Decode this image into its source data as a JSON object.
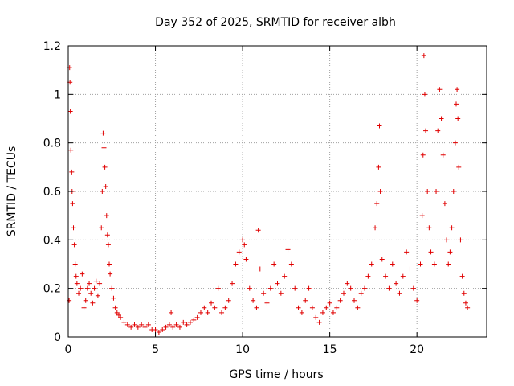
{
  "chart_data": {
    "type": "scatter",
    "title": "Day 352 of 2025, SRMTID for receiver albh",
    "xlabel": "GPS time / hours",
    "ylabel": "SRMTID / TECUs",
    "xlim": [
      0,
      24
    ],
    "ylim": [
      0,
      1.2
    ],
    "x_ticks": [
      0,
      5,
      10,
      15,
      20
    ],
    "x_tick_labels": [
      "0",
      "5",
      "10",
      "15",
      "20"
    ],
    "y_ticks": [
      0,
      0.2,
      0.4,
      0.6,
      0.8,
      1.0,
      1.2
    ],
    "y_tick_labels": [
      "0",
      "0.2",
      "0.4",
      "0.6",
      "0.8",
      "1",
      "1.2"
    ],
    "grid": true,
    "marker": "+",
    "series_color": "#e00000",
    "series": [
      {
        "name": "SRMTID",
        "points": [
          [
            0.05,
            0.15
          ],
          [
            0.08,
            1.11
          ],
          [
            0.1,
            1.05
          ],
          [
            0.12,
            0.93
          ],
          [
            0.15,
            0.77
          ],
          [
            0.2,
            0.68
          ],
          [
            0.22,
            0.6
          ],
          [
            0.25,
            0.55
          ],
          [
            0.3,
            0.45
          ],
          [
            0.35,
            0.38
          ],
          [
            0.4,
            0.3
          ],
          [
            0.45,
            0.25
          ],
          [
            0.5,
            0.22
          ],
          [
            0.6,
            0.18
          ],
          [
            0.7,
            0.2
          ],
          [
            0.8,
            0.26
          ],
          [
            0.9,
            0.12
          ],
          [
            1.0,
            0.15
          ],
          [
            1.1,
            0.2
          ],
          [
            1.2,
            0.22
          ],
          [
            1.3,
            0.18
          ],
          [
            1.4,
            0.14
          ],
          [
            1.5,
            0.2
          ],
          [
            1.6,
            0.23
          ],
          [
            1.7,
            0.17
          ],
          [
            1.8,
            0.22
          ],
          [
            1.9,
            0.45
          ],
          [
            1.95,
            0.6
          ],
          [
            2.0,
            0.84
          ],
          [
            2.05,
            0.78
          ],
          [
            2.1,
            0.7
          ],
          [
            2.15,
            0.62
          ],
          [
            2.2,
            0.5
          ],
          [
            2.25,
            0.42
          ],
          [
            2.3,
            0.38
          ],
          [
            2.35,
            0.3
          ],
          [
            2.4,
            0.26
          ],
          [
            2.5,
            0.2
          ],
          [
            2.6,
            0.16
          ],
          [
            2.7,
            0.12
          ],
          [
            2.8,
            0.1
          ],
          [
            2.9,
            0.09
          ],
          [
            3.0,
            0.08
          ],
          [
            3.2,
            0.06
          ],
          [
            3.4,
            0.05
          ],
          [
            3.6,
            0.04
          ],
          [
            3.8,
            0.05
          ],
          [
            4.0,
            0.04
          ],
          [
            4.2,
            0.05
          ],
          [
            4.4,
            0.04
          ],
          [
            4.6,
            0.05
          ],
          [
            4.8,
            0.03
          ],
          [
            5.0,
            0.03
          ],
          [
            5.2,
            0.02
          ],
          [
            5.4,
            0.03
          ],
          [
            5.6,
            0.04
          ],
          [
            5.8,
            0.05
          ],
          [
            5.9,
            0.1
          ],
          [
            6.0,
            0.04
          ],
          [
            6.2,
            0.05
          ],
          [
            6.4,
            0.04
          ],
          [
            6.6,
            0.06
          ],
          [
            6.8,
            0.05
          ],
          [
            7.0,
            0.06
          ],
          [
            7.2,
            0.07
          ],
          [
            7.4,
            0.08
          ],
          [
            7.6,
            0.1
          ],
          [
            7.8,
            0.12
          ],
          [
            8.0,
            0.1
          ],
          [
            8.2,
            0.14
          ],
          [
            8.4,
            0.12
          ],
          [
            8.6,
            0.2
          ],
          [
            8.8,
            0.1
          ],
          [
            9.0,
            0.12
          ],
          [
            9.2,
            0.15
          ],
          [
            9.4,
            0.22
          ],
          [
            9.6,
            0.3
          ],
          [
            9.8,
            0.35
          ],
          [
            10.0,
            0.4
          ],
          [
            10.1,
            0.38
          ],
          [
            10.2,
            0.32
          ],
          [
            10.4,
            0.2
          ],
          [
            10.6,
            0.15
          ],
          [
            10.8,
            0.12
          ],
          [
            10.9,
            0.44
          ],
          [
            11.0,
            0.28
          ],
          [
            11.2,
            0.18
          ],
          [
            11.4,
            0.14
          ],
          [
            11.6,
            0.2
          ],
          [
            11.8,
            0.3
          ],
          [
            12.0,
            0.22
          ],
          [
            12.2,
            0.18
          ],
          [
            12.4,
            0.25
          ],
          [
            12.6,
            0.36
          ],
          [
            12.8,
            0.3
          ],
          [
            13.0,
            0.2
          ],
          [
            13.2,
            0.12
          ],
          [
            13.4,
            0.1
          ],
          [
            13.6,
            0.15
          ],
          [
            13.8,
            0.2
          ],
          [
            14.0,
            0.12
          ],
          [
            14.2,
            0.08
          ],
          [
            14.4,
            0.06
          ],
          [
            14.6,
            0.1
          ],
          [
            14.8,
            0.12
          ],
          [
            15.0,
            0.14
          ],
          [
            15.2,
            0.1
          ],
          [
            15.4,
            0.12
          ],
          [
            15.6,
            0.15
          ],
          [
            15.8,
            0.18
          ],
          [
            16.0,
            0.22
          ],
          [
            16.2,
            0.2
          ],
          [
            16.4,
            0.15
          ],
          [
            16.6,
            0.12
          ],
          [
            16.8,
            0.18
          ],
          [
            17.0,
            0.2
          ],
          [
            17.2,
            0.25
          ],
          [
            17.4,
            0.3
          ],
          [
            17.6,
            0.45
          ],
          [
            17.7,
            0.55
          ],
          [
            17.8,
            0.7
          ],
          [
            17.85,
            0.87
          ],
          [
            17.9,
            0.6
          ],
          [
            18.0,
            0.32
          ],
          [
            18.2,
            0.25
          ],
          [
            18.4,
            0.2
          ],
          [
            18.6,
            0.3
          ],
          [
            18.8,
            0.22
          ],
          [
            19.0,
            0.18
          ],
          [
            19.2,
            0.25
          ],
          [
            19.4,
            0.35
          ],
          [
            19.6,
            0.28
          ],
          [
            19.8,
            0.2
          ],
          [
            20.0,
            0.15
          ],
          [
            20.2,
            0.3
          ],
          [
            20.3,
            0.5
          ],
          [
            20.35,
            0.75
          ],
          [
            20.4,
            1.16
          ],
          [
            20.45,
            1.0
          ],
          [
            20.5,
            0.85
          ],
          [
            20.6,
            0.6
          ],
          [
            20.7,
            0.45
          ],
          [
            20.8,
            0.35
          ],
          [
            21.0,
            0.3
          ],
          [
            21.1,
            0.6
          ],
          [
            21.2,
            0.85
          ],
          [
            21.3,
            1.02
          ],
          [
            21.4,
            0.9
          ],
          [
            21.5,
            0.75
          ],
          [
            21.6,
            0.55
          ],
          [
            21.7,
            0.4
          ],
          [
            21.8,
            0.3
          ],
          [
            21.9,
            0.35
          ],
          [
            22.0,
            0.45
          ],
          [
            22.1,
            0.6
          ],
          [
            22.2,
            0.8
          ],
          [
            22.25,
            0.96
          ],
          [
            22.3,
            1.02
          ],
          [
            22.35,
            0.9
          ],
          [
            22.4,
            0.7
          ],
          [
            22.5,
            0.4
          ],
          [
            22.6,
            0.25
          ],
          [
            22.7,
            0.18
          ],
          [
            22.8,
            0.14
          ],
          [
            22.9,
            0.12
          ]
        ]
      }
    ]
  }
}
